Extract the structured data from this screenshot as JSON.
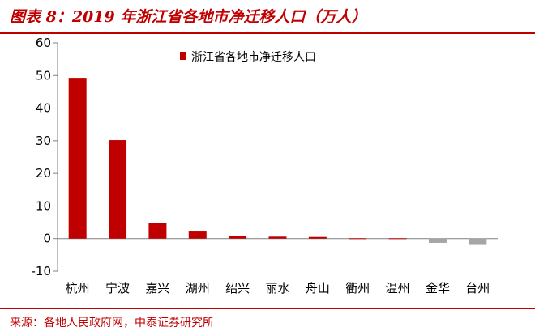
{
  "figure": {
    "title": "图表 8：2019 年浙江省各地市净迁移人口（万人）",
    "source": "来源：各地人民政府网，中泰证券研究所"
  },
  "colors": {
    "positive": "#c00000",
    "negative": "#a6a6a6",
    "accent": "#c00000"
  },
  "chart_data": {
    "type": "bar",
    "categories": [
      "杭州",
      "宁波",
      "嘉兴",
      "湖州",
      "绍兴",
      "丽水",
      "舟山",
      "衢州",
      "温州",
      "金华",
      "台州"
    ],
    "series": [
      {
        "name": "浙江省各地市净迁移人口",
        "values": [
          49.3,
          30.2,
          4.7,
          2.4,
          0.9,
          0.6,
          0.5,
          0.1,
          0.1,
          -1.3,
          -1.7
        ]
      }
    ],
    "ylim": [
      -10,
      60
    ],
    "yticks": [
      "60",
      "50",
      "40",
      "30",
      "20",
      "10",
      "0",
      "-10"
    ],
    "ytick_values": [
      60,
      50,
      40,
      30,
      20,
      10,
      0,
      -10
    ],
    "grid": false,
    "legend": "top-left",
    "xlabel": "",
    "ylabel": ""
  }
}
